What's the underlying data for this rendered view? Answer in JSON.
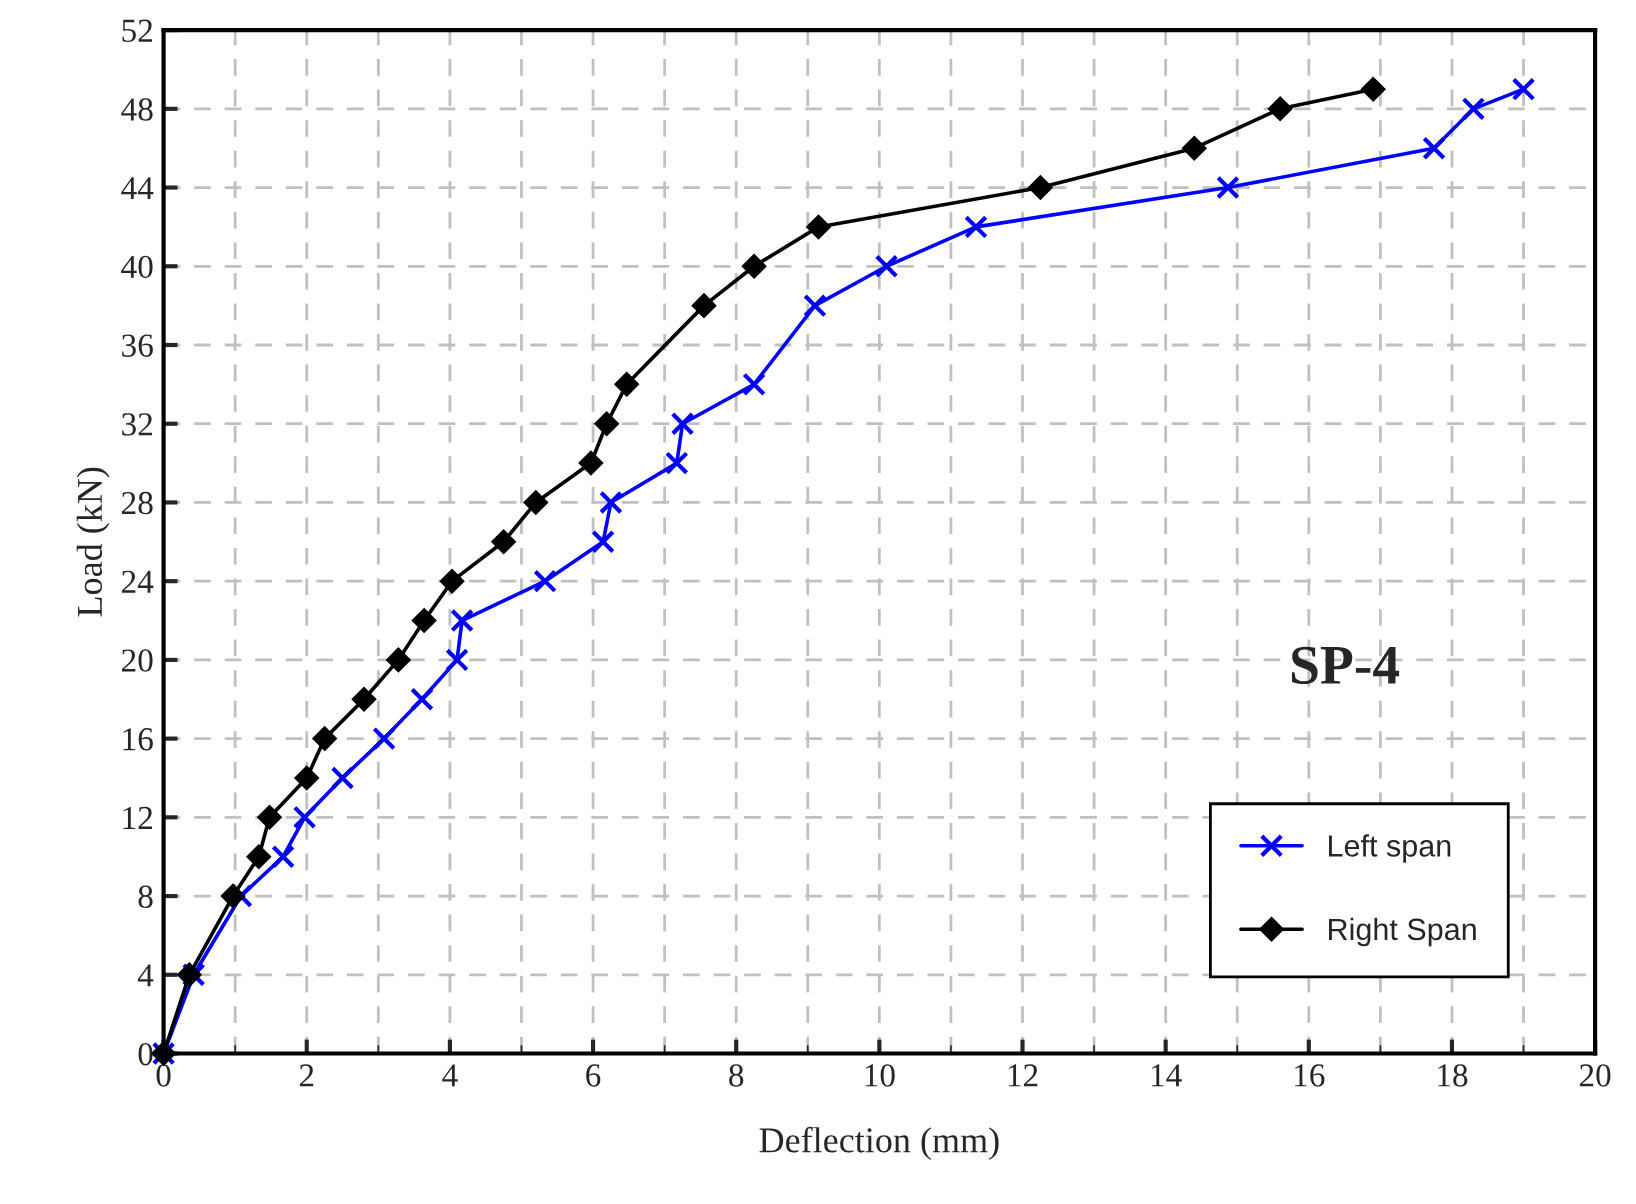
{
  "chart_data": {
    "type": "line",
    "xlabel": "Deflection (mm)",
    "ylabel": "Load (kN)",
    "xlim": [
      0,
      20
    ],
    "xticks": [
      0,
      2,
      4,
      6,
      8,
      10,
      12,
      14,
      16,
      18,
      20
    ],
    "ylim": [
      0,
      52
    ],
    "yticks": [
      0,
      4,
      8,
      12,
      16,
      20,
      24,
      28,
      32,
      36,
      40,
      44,
      48,
      52
    ],
    "grid": true,
    "legend": "bottom right",
    "annotations": [
      "SP-4"
    ],
    "series": [
      {
        "name": "Left span",
        "color": "#0000ff",
        "marker": "cross",
        "x": [
          0,
          0.42,
          1.08,
          1.67,
          1.97,
          2.5,
          3.08,
          3.61,
          4.1,
          4.17,
          5.33,
          6.14,
          6.25,
          7.17,
          7.25,
          8.25,
          9.1,
          10.1,
          11.35,
          14.87,
          17.75,
          18.3,
          19.0
        ],
        "values": [
          0,
          4,
          8,
          10,
          12,
          14,
          16,
          18,
          20,
          22,
          24,
          26,
          28,
          30,
          32,
          34,
          38,
          40,
          42,
          44,
          46,
          48,
          49
        ]
      },
      {
        "name": "Right Span",
        "color": "#000000",
        "marker": "diamond",
        "x": [
          0,
          0.36,
          0.97,
          1.33,
          1.48,
          2.0,
          2.25,
          2.8,
          3.28,
          3.64,
          4.03,
          4.75,
          5.2,
          5.97,
          6.19,
          6.47,
          7.55,
          8.25,
          9.15,
          12.25,
          14.4,
          15.6,
          16.9
        ],
        "values": [
          0,
          4,
          8,
          10,
          12,
          14,
          16,
          18,
          20,
          22,
          24,
          26,
          28,
          30,
          32,
          34,
          38,
          40,
          42,
          44,
          46,
          48,
          49
        ]
      }
    ]
  }
}
